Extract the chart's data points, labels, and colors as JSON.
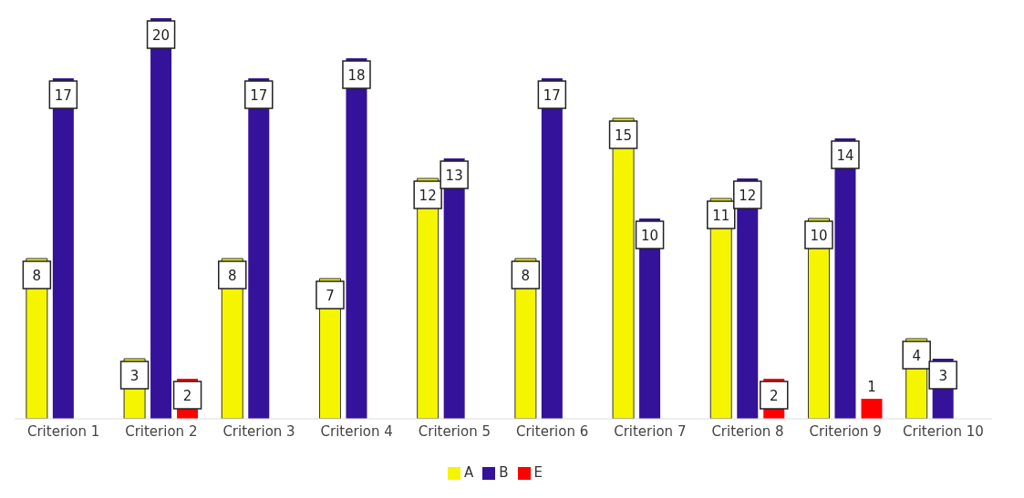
{
  "chart_data": {
    "type": "bar",
    "categories": [
      "Criterion 1",
      "Criterion 2",
      "Criterion 3",
      "Criterion 4",
      "Criterion 5",
      "Criterion 6",
      "Criterion 7",
      "Criterion 8",
      "Criterion 9",
      "Criterion 10"
    ],
    "series": [
      {
        "name": "A",
        "color": "#f5f500",
        "values": [
          8,
          3,
          8,
          7,
          12,
          8,
          15,
          11,
          10,
          4
        ]
      },
      {
        "name": "B",
        "color": "#34129a",
        "values": [
          17,
          20,
          17,
          18,
          13,
          17,
          10,
          12,
          14,
          3
        ]
      },
      {
        "name": "E",
        "color": "#ff0000",
        "values": [
          null,
          2,
          null,
          null,
          null,
          null,
          null,
          2,
          1,
          null
        ]
      }
    ],
    "ylim": [
      0,
      20
    ],
    "tick_labels": "x",
    "legend": "bottom",
    "data_labels": true
  }
}
